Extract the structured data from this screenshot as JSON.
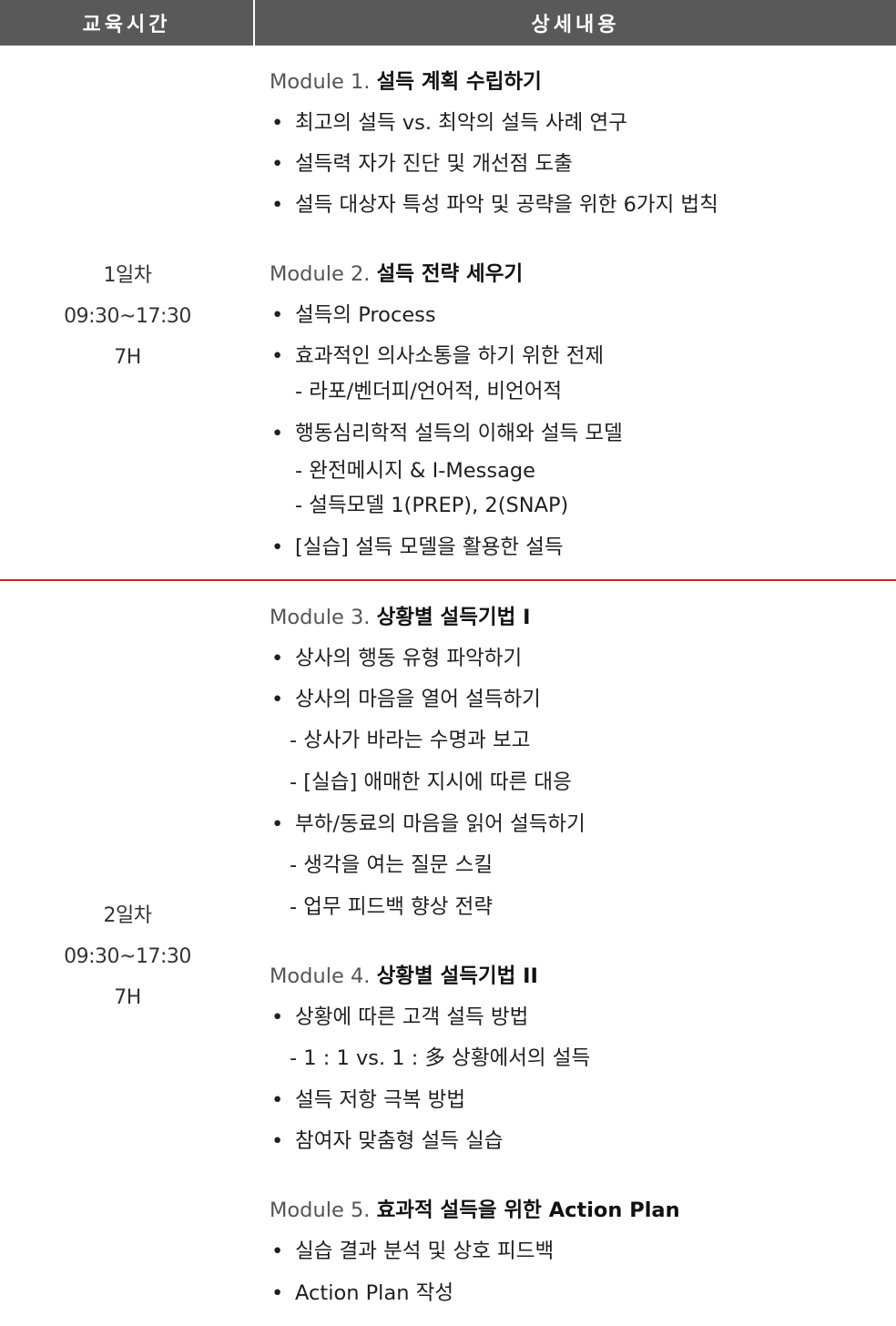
{
  "header": {
    "time_label": "교육시간",
    "detail_label": "상세내용"
  },
  "day1": {
    "time": [
      "1일차",
      "09:30~17:30",
      "7H"
    ],
    "modules": [
      {
        "num": "Module 1.",
        "title": "설득 계획 수립하기",
        "bullets": [
          "최고의 설득  vs. 최악의 설득 사례 연구",
          "설득력 자가 진단 및 개선점 도출",
          "설득 대상자 특성 파악 및 공략을 위한 6가지 법칙"
        ]
      },
      {
        "num": "Module 2.",
        "title": "설득 전략 세우기",
        "bullets": [
          "설득의 Process",
          "효과적인 의사소통을 하기 위한 전제",
          "행동심리학적 설득의 이해와 설득 모델",
          "[실습] 설득 모델을 활용한 설득"
        ],
        "subs": [
          "- 라포/벤더피/언어적, 비언어적",
          "- 완전메시지 & I-Message",
          "- 설득모델 1(PREP), 2(SNAP)"
        ]
      }
    ]
  },
  "day2": {
    "time": [
      "2일차",
      "09:30~17:30",
      "7H"
    ],
    "modules": [
      {
        "num": "Module 3.",
        "title": "상황별 설득기법  I",
        "bullets": [
          "상사의 행동 유형 파악하기",
          "상사의 마음을 열어 설득하기",
          "부하/동료의 마음을 읽어 설득하기"
        ],
        "subs": [
          "- 상사가 바라는 수명과 보고",
          "- [실습] 애매한 지시에 따른 대응",
          "- 생각을 여는 질문 스킬",
          "- 업무 피드백 향상 전략"
        ]
      },
      {
        "num": "Module 4.",
        "title": "상황별 설득기법 II",
        "bullets": [
          "상황에 따른 고객 설득 방법",
          "설득 저항 극복 방법",
          "참여자 맞춤형 설득 실습"
        ],
        "subs": [
          "- 1 : 1 vs. 1 : 多 상황에서의 설득"
        ]
      },
      {
        "num": "Module 5.",
        "title": "효과적 설득을 위한 Action Plan",
        "bullets": [
          "실습 결과 분석 및 상호 피드백",
          "Action Plan 작성"
        ]
      }
    ]
  },
  "bullet_symbol": "•",
  "colors": {
    "header_bg": "#595959",
    "divider": "#c62828"
  }
}
